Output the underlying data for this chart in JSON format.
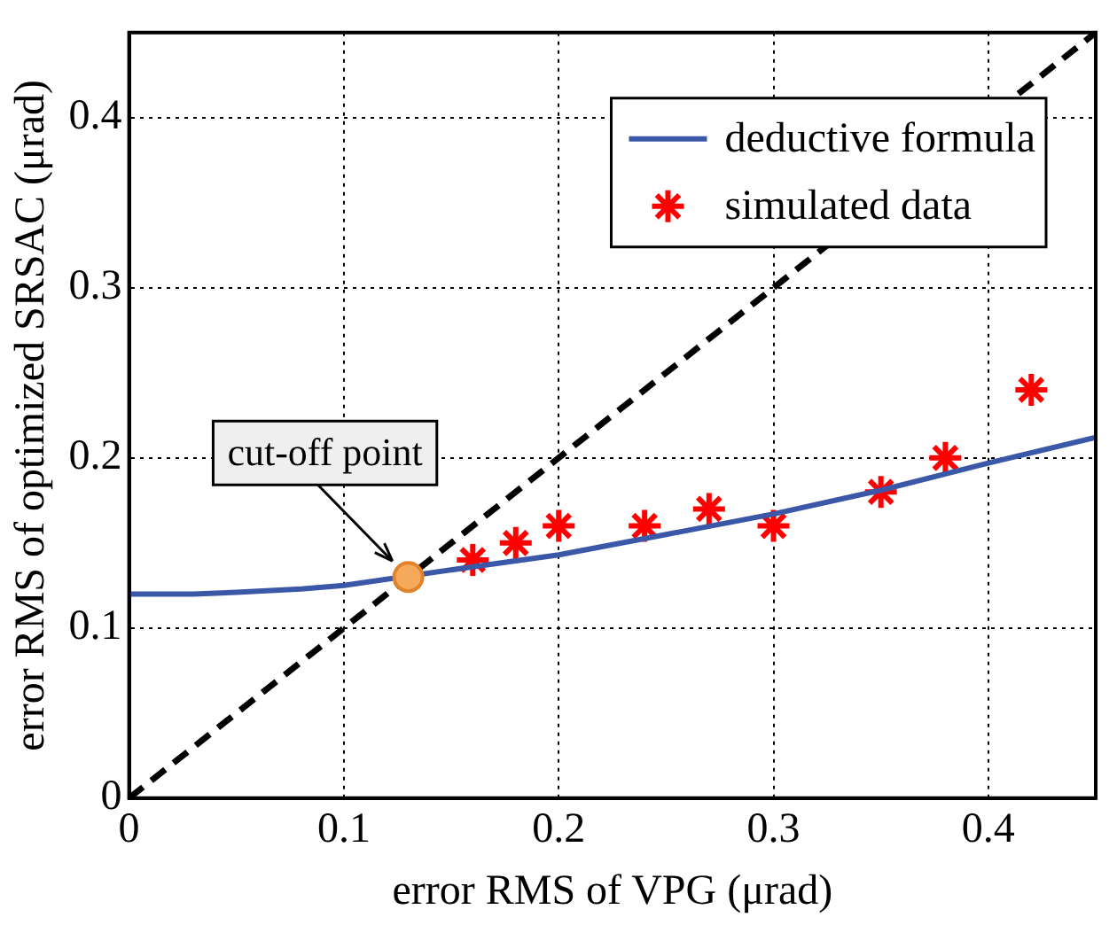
{
  "chart_data": {
    "type": "line",
    "xlabel": "error RMS of VPG (μrad)",
    "ylabel": "error RMS of optimized SRSAC (μrad)",
    "xlim": [
      0,
      0.45
    ],
    "ylim": [
      0,
      0.45
    ],
    "xticks": [
      0,
      0.1,
      0.2,
      0.3,
      0.4
    ],
    "yticks": [
      0,
      0.1,
      0.2,
      0.3,
      0.4
    ],
    "grid": true,
    "legend": "top right",
    "annotations": [
      {
        "text": "cut-off point",
        "x": 0.13,
        "y": 0.13
      }
    ],
    "series": [
      {
        "name": "deductive formula",
        "type": "line",
        "color": "#3b57a8",
        "marker": "none",
        "line_style": "solid",
        "x": [
          0,
          0.03,
          0.05,
          0.08,
          0.1,
          0.16,
          0.2,
          0.25,
          0.3,
          0.35,
          0.4,
          0.45
        ],
        "values": [
          0.12,
          0.12,
          0.121,
          0.123,
          0.125,
          0.136,
          0.143,
          0.155,
          0.167,
          0.181,
          0.197,
          0.212
        ]
      },
      {
        "name": "simulated data",
        "type": "scatter",
        "color": "#ff0000",
        "marker": "cross",
        "x": [
          0.16,
          0.18,
          0.2,
          0.24,
          0.27,
          0.3,
          0.35,
          0.38,
          0.42
        ],
        "values": [
          0.14,
          0.15,
          0.16,
          0.16,
          0.17,
          0.16,
          0.18,
          0.2,
          0.24
        ]
      },
      {
        "type": "line",
        "color": "#000000",
        "marker": "none",
        "line_style": "dashed",
        "x": [
          0,
          0.45
        ],
        "values": [
          0,
          0.45
        ]
      },
      {
        "type": "scatter",
        "color": "#f5a95a",
        "marker": "circle",
        "x": [
          0.13
        ],
        "values": [
          0.13
        ]
      }
    ]
  }
}
